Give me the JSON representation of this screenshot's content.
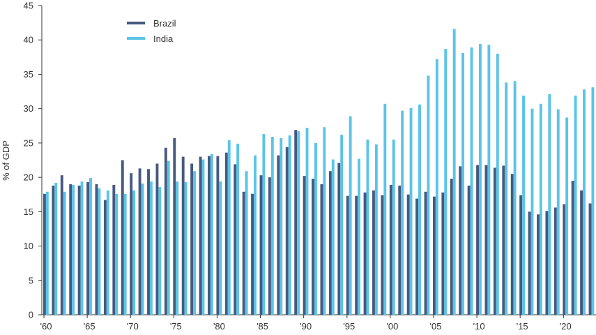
{
  "chart_data": {
    "type": "bar",
    "title": "",
    "xlabel": "",
    "ylabel": "% of GDP",
    "ylim": [
      0,
      45
    ],
    "yticks": [
      0,
      5,
      10,
      15,
      20,
      25,
      30,
      35,
      40,
      45
    ],
    "x": [
      1960,
      1961,
      1962,
      1963,
      1964,
      1965,
      1966,
      1967,
      1968,
      1969,
      1970,
      1971,
      1972,
      1973,
      1974,
      1975,
      1976,
      1977,
      1978,
      1979,
      1980,
      1981,
      1982,
      1983,
      1984,
      1985,
      1986,
      1987,
      1988,
      1989,
      1990,
      1991,
      1992,
      1993,
      1994,
      1995,
      1996,
      1997,
      1998,
      1999,
      2000,
      2001,
      2002,
      2003,
      2004,
      2005,
      2006,
      2007,
      2008,
      2009,
      2010,
      2011,
      2012,
      2013,
      2014,
      2015,
      2016,
      2017,
      2018,
      2019,
      2020,
      2021,
      2022,
      2023
    ],
    "xtick_labels": [
      {
        "year": 1960,
        "label": "'60"
      },
      {
        "year": 1965,
        "label": "'65"
      },
      {
        "year": 1970,
        "label": "'70"
      },
      {
        "year": 1975,
        "label": "'75"
      },
      {
        "year": 1980,
        "label": "'80"
      },
      {
        "year": 1985,
        "label": "'85"
      },
      {
        "year": 1990,
        "label": "'90"
      },
      {
        "year": 1995,
        "label": "'95"
      },
      {
        "year": 2000,
        "label": "'00"
      },
      {
        "year": 2005,
        "label": "'05"
      },
      {
        "year": 2010,
        "label": "'10"
      },
      {
        "year": 2015,
        "label": "'15"
      },
      {
        "year": 2020,
        "label": "'20"
      }
    ],
    "series": [
      {
        "name": "Brazil",
        "color": "#46597f",
        "values": [
          17.6,
          18.8,
          20.3,
          19.0,
          18.8,
          19.3,
          19.0,
          16.7,
          18.9,
          22.5,
          20.6,
          21.3,
          21.2,
          22.0,
          24.3,
          25.7,
          23.0,
          22.0,
          23.0,
          23.1,
          23.1,
          23.6,
          21.9,
          17.9,
          17.6,
          20.3,
          20.0,
          23.2,
          24.4,
          26.9,
          20.2,
          19.8,
          19.0,
          20.9,
          22.1,
          17.3,
          17.3,
          17.8,
          18.1,
          17.4,
          18.9,
          18.8,
          17.5,
          16.9,
          17.9,
          17.2,
          17.8,
          19.8,
          21.6,
          18.8,
          21.8,
          21.8,
          21.4,
          21.7,
          20.5,
          17.4,
          15.0,
          14.6,
          15.1,
          15.6,
          16.1,
          19.5,
          18.1,
          16.2
        ]
      },
      {
        "name": "India",
        "color": "#5bc4e8",
        "values": [
          17.9,
          19.2,
          17.9,
          18.9,
          19.4,
          19.9,
          18.4,
          18.1,
          17.6,
          17.6,
          18.1,
          19.1,
          19.4,
          18.6,
          22.4,
          19.4,
          19.3,
          20.9,
          22.6,
          23.4,
          19.4,
          25.4,
          24.9,
          20.9,
          23.2,
          26.3,
          25.9,
          25.7,
          26.1,
          26.7,
          27.2,
          25.0,
          27.3,
          22.6,
          26.2,
          28.9,
          22.7,
          25.5,
          24.8,
          30.7,
          25.5,
          29.7,
          30.1,
          30.6,
          34.8,
          37.2,
          38.7,
          41.6,
          38.1,
          38.9,
          39.4,
          39.3,
          38.0,
          33.8,
          34.0,
          31.9,
          30.0,
          30.7,
          32.1,
          29.9,
          28.7,
          31.9,
          32.8,
          33.1
        ]
      }
    ],
    "legend": {
      "placement": "top-left",
      "items": [
        "Brazil",
        "India"
      ]
    },
    "grid": false
  }
}
